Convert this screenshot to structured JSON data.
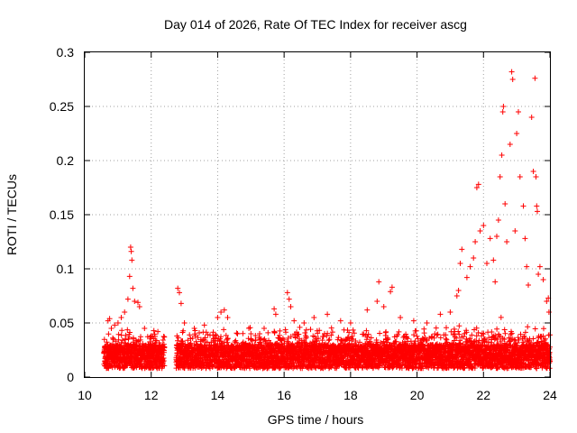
{
  "chart_data": {
    "type": "scatter",
    "title": "Day 014 of 2026, Rate Of TEC Index for receiver ascg",
    "xlabel": "GPS time / hours",
    "ylabel": "ROTI / TECUs",
    "xlim": [
      10,
      24
    ],
    "ylim": [
      0,
      0.3
    ],
    "grid": true,
    "x_ticks": [
      10,
      12,
      14,
      16,
      18,
      20,
      22,
      24
    ],
    "x_tick_labels": [
      "10",
      "12",
      "14",
      "16",
      "18",
      "20",
      "22",
      "24"
    ],
    "y_ticks": [
      0,
      0.05,
      0.1,
      0.15,
      0.2,
      0.25,
      0.3
    ],
    "y_tick_labels": [
      "0",
      "0.05",
      "0.1",
      "0.15",
      "0.2",
      "0.25",
      "0.3"
    ],
    "marker": "+",
    "color": "#ff0000",
    "data_gap_hours": [
      12.5,
      12.75
    ],
    "series": [
      {
        "name": "ROTI",
        "points": [
          [
            10.6,
            0.028
          ],
          [
            10.7,
            0.052
          ],
          [
            10.75,
            0.054
          ],
          [
            10.8,
            0.045
          ],
          [
            10.9,
            0.048
          ],
          [
            11.0,
            0.05
          ],
          [
            11.1,
            0.055
          ],
          [
            11.2,
            0.06
          ],
          [
            11.3,
            0.072
          ],
          [
            11.38,
            0.12
          ],
          [
            11.4,
            0.116
          ],
          [
            11.42,
            0.108
          ],
          [
            11.35,
            0.093
          ],
          [
            11.45,
            0.082
          ],
          [
            11.5,
            0.07
          ],
          [
            11.6,
            0.069
          ],
          [
            11.65,
            0.065
          ],
          [
            11.8,
            0.045
          ],
          [
            12.0,
            0.038
          ],
          [
            12.2,
            0.042
          ],
          [
            12.35,
            0.028
          ],
          [
            12.8,
            0.082
          ],
          [
            12.85,
            0.078
          ],
          [
            12.9,
            0.068
          ],
          [
            13.0,
            0.05
          ],
          [
            13.3,
            0.045
          ],
          [
            13.6,
            0.048
          ],
          [
            14.0,
            0.055
          ],
          [
            14.1,
            0.06
          ],
          [
            14.2,
            0.062
          ],
          [
            14.3,
            0.055
          ],
          [
            14.6,
            0.04
          ],
          [
            15.0,
            0.04
          ],
          [
            15.4,
            0.045
          ],
          [
            15.7,
            0.063
          ],
          [
            15.75,
            0.058
          ],
          [
            16.1,
            0.078
          ],
          [
            16.15,
            0.072
          ],
          [
            16.2,
            0.065
          ],
          [
            16.3,
            0.052
          ],
          [
            16.6,
            0.05
          ],
          [
            16.9,
            0.055
          ],
          [
            17.3,
            0.058
          ],
          [
            17.7,
            0.052
          ],
          [
            18.0,
            0.05
          ],
          [
            18.5,
            0.062
          ],
          [
            18.8,
            0.07
          ],
          [
            18.85,
            0.088
          ],
          [
            19.0,
            0.065
          ],
          [
            19.2,
            0.079
          ],
          [
            19.25,
            0.083
          ],
          [
            19.5,
            0.055
          ],
          [
            19.9,
            0.052
          ],
          [
            20.3,
            0.05
          ],
          [
            20.7,
            0.058
          ],
          [
            21.0,
            0.06
          ],
          [
            21.2,
            0.075
          ],
          [
            21.25,
            0.08
          ],
          [
            21.3,
            0.105
          ],
          [
            21.35,
            0.118
          ],
          [
            21.5,
            0.092
          ],
          [
            21.6,
            0.102
          ],
          [
            21.7,
            0.11
          ],
          [
            21.75,
            0.125
          ],
          [
            21.8,
            0.175
          ],
          [
            21.85,
            0.178
          ],
          [
            21.9,
            0.135
          ],
          [
            22.0,
            0.14
          ],
          [
            22.1,
            0.105
          ],
          [
            22.2,
            0.128
          ],
          [
            22.3,
            0.108
          ],
          [
            22.35,
            0.088
          ],
          [
            22.4,
            0.13
          ],
          [
            22.45,
            0.145
          ],
          [
            22.5,
            0.185
          ],
          [
            22.55,
            0.205
          ],
          [
            22.58,
            0.245
          ],
          [
            22.6,
            0.25
          ],
          [
            22.65,
            0.16
          ],
          [
            22.7,
            0.125
          ],
          [
            22.8,
            0.215
          ],
          [
            22.85,
            0.282
          ],
          [
            22.88,
            0.275
          ],
          [
            22.95,
            0.135
          ],
          [
            23.0,
            0.225
          ],
          [
            23.05,
            0.245
          ],
          [
            23.1,
            0.185
          ],
          [
            23.2,
            0.158
          ],
          [
            23.25,
            0.128
          ],
          [
            23.3,
            0.102
          ],
          [
            23.35,
            0.085
          ],
          [
            23.45,
            0.24
          ],
          [
            23.5,
            0.19
          ],
          [
            23.55,
            0.276
          ],
          [
            23.58,
            0.185
          ],
          [
            23.6,
            0.158
          ],
          [
            23.62,
            0.153
          ],
          [
            23.65,
            0.095
          ],
          [
            23.7,
            0.102
          ],
          [
            23.8,
            0.09
          ],
          [
            23.9,
            0.07
          ],
          [
            23.95,
            0.073
          ],
          [
            23.97,
            0.06
          ]
        ]
      }
    ]
  }
}
